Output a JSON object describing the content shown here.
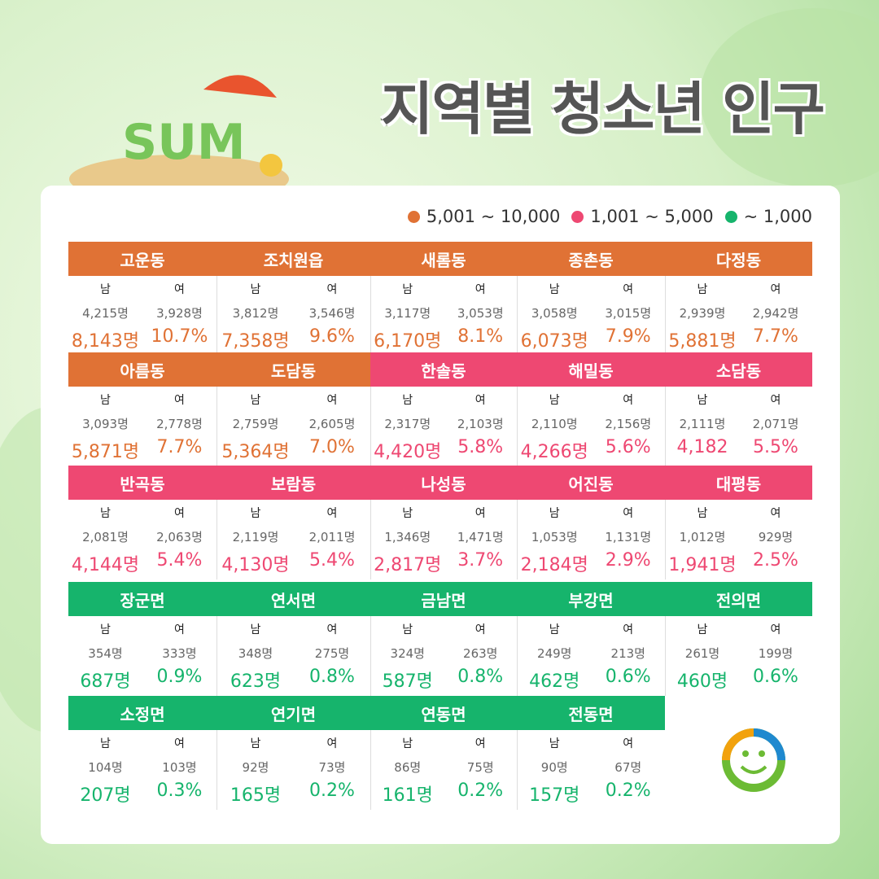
{
  "title": "지역별 청소년 인구",
  "legend": [
    {
      "label": "5,001 ~ 10,000",
      "color": "#e07235"
    },
    {
      "label": "1,001 ~ 5,000",
      "color": "#ee4872"
    },
    {
      "label": "~ 1,000",
      "color": "#16b46c"
    }
  ],
  "labels": {
    "male": "남",
    "female": "여"
  },
  "regions": [
    {
      "name": "고운동",
      "male": "4,215명",
      "female": "3,928명",
      "total": "8,143명",
      "share": "10.7%",
      "tier": 0
    },
    {
      "name": "조치원읍",
      "male": "3,812명",
      "female": "3,546명",
      "total": "7,358명",
      "share": "9.6%",
      "tier": 0
    },
    {
      "name": "새롬동",
      "male": "3,117명",
      "female": "3,053명",
      "total": "6,170명",
      "share": "8.1%",
      "tier": 0
    },
    {
      "name": "종촌동",
      "male": "3,058명",
      "female": "3,015명",
      "total": "6,073명",
      "share": "7.9%",
      "tier": 0
    },
    {
      "name": "다정동",
      "male": "2,939명",
      "female": "2,942명",
      "total": "5,881명",
      "share": "7.7%",
      "tier": 0
    },
    {
      "name": "아름동",
      "male": "3,093명",
      "female": "2,778명",
      "total": "5,871명",
      "share": "7.7%",
      "tier": 0
    },
    {
      "name": "도담동",
      "male": "2,759명",
      "female": "2,605명",
      "total": "5,364명",
      "share": "7.0%",
      "tier": 0
    },
    {
      "name": "한솔동",
      "male": "2,317명",
      "female": "2,103명",
      "total": "4,420명",
      "share": "5.8%",
      "tier": 1
    },
    {
      "name": "해밀동",
      "male": "2,110명",
      "female": "2,156명",
      "total": "4,266명",
      "share": "5.6%",
      "tier": 1
    },
    {
      "name": "소담동",
      "male": "2,111명",
      "female": "2,071명",
      "total": "4,182",
      "share": "5.5%",
      "tier": 1
    },
    {
      "name": "반곡동",
      "male": "2,081명",
      "female": "2,063명",
      "total": "4,144명",
      "share": "5.4%",
      "tier": 1
    },
    {
      "name": "보람동",
      "male": "2,119명",
      "female": "2,011명",
      "total": "4,130명",
      "share": "5.4%",
      "tier": 1
    },
    {
      "name": "나성동",
      "male": "1,346명",
      "female": "1,471명",
      "total": "2,817명",
      "share": "3.7%",
      "tier": 1
    },
    {
      "name": "어진동",
      "male": "1,053명",
      "female": "1,131명",
      "total": "2,184명",
      "share": "2.9%",
      "tier": 1
    },
    {
      "name": "대평동",
      "male": "1,012명",
      "female": "929명",
      "total": "1,941명",
      "share": "2.5%",
      "tier": 1
    },
    {
      "name": "장군면",
      "male": "354명",
      "female": "333명",
      "total": "687명",
      "share": "0.9%",
      "tier": 2
    },
    {
      "name": "연서면",
      "male": "348명",
      "female": "275명",
      "total": "623명",
      "share": "0.8%",
      "tier": 2
    },
    {
      "name": "금남면",
      "male": "324명",
      "female": "263명",
      "total": "587명",
      "share": "0.8%",
      "tier": 2
    },
    {
      "name": "부강면",
      "male": "249명",
      "female": "213명",
      "total": "462명",
      "share": "0.6%",
      "tier": 2
    },
    {
      "name": "전의면",
      "male": "261명",
      "female": "199명",
      "total": "460명",
      "share": "0.6%",
      "tier": 2
    },
    {
      "name": "소정면",
      "male": "104명",
      "female": "103명",
      "total": "207명",
      "share": "0.3%",
      "tier": 2
    },
    {
      "name": "연기면",
      "male": "92명",
      "female": "73명",
      "total": "165명",
      "share": "0.2%",
      "tier": 2
    },
    {
      "name": "연동면",
      "male": "86명",
      "female": "75명",
      "total": "161명",
      "share": "0.2%",
      "tier": 2
    },
    {
      "name": "전동면",
      "male": "90명",
      "female": "67명",
      "total": "157명",
      "share": "0.2%",
      "tier": 2
    }
  ]
}
